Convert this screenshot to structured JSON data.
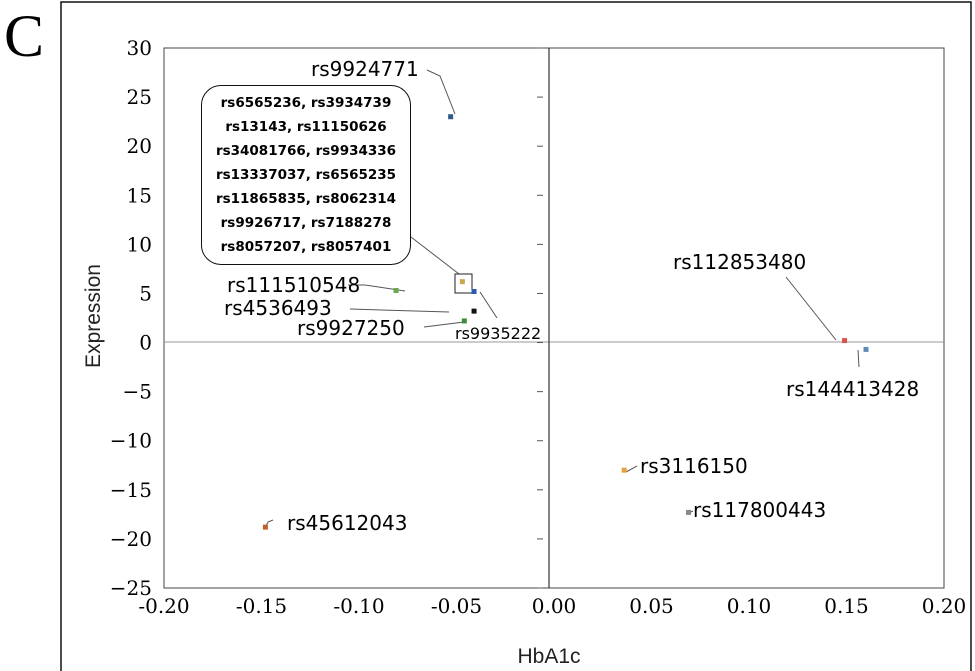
{
  "panel_label": "C",
  "callout": {
    "lines": [
      "rs6565236, rs3934739",
      "rs13143, rs11150626",
      "rs34081766, rs9934336",
      "rs13337037, rs6565235",
      "rs11865835, rs8062314",
      "rs9926717, rs7188278",
      "rs8057207, rs8057401"
    ]
  },
  "chart_data": {
    "type": "scatter",
    "title": "",
    "xlabel": "HbA1c",
    "ylabel": "Expression",
    "xlim": [
      -0.2,
      0.2
    ],
    "ylim": [
      -25,
      30
    ],
    "x_ticks": [
      "-0.20",
      "-0.15",
      "-0.10",
      "-0.05",
      "0.00",
      "0.05",
      "0.10",
      "0.15",
      "0.20"
    ],
    "y_ticks": [
      "30",
      "25",
      "20",
      "15",
      "10",
      "5",
      "0",
      "−5",
      "−10",
      "−15",
      "−20",
      "−25"
    ],
    "grid": false,
    "reference_lines": [
      "x=0",
      "y=0"
    ],
    "points": [
      {
        "label": "rs9924771",
        "x": -0.053,
        "y": 23.0,
        "color": "#2e5a8c"
      },
      {
        "label": "rs111510548",
        "x": -0.081,
        "y": 5.3,
        "color": "#6aa84f"
      },
      {
        "label": "rs4536493",
        "x": -0.041,
        "y": 3.2,
        "color": "#111111"
      },
      {
        "label": "rs9927250",
        "x": -0.046,
        "y": 2.2,
        "color": "#3c8c3c"
      },
      {
        "label": "rs9935222",
        "x": -0.041,
        "y": 5.2,
        "color": "#2e5ab4"
      },
      {
        "label": "rs112853480",
        "x": 0.149,
        "y": 0.2,
        "color": "#d9534f"
      },
      {
        "label": "rs144413428",
        "x": 0.16,
        "y": -0.7,
        "color": "#5b8db8"
      },
      {
        "label": "rs3116150",
        "x": 0.036,
        "y": -13.0,
        "color": "#e6a23c"
      },
      {
        "label": "rs117800443",
        "x": 0.069,
        "y": -17.3,
        "color": "#888888"
      },
      {
        "label": "rs45612043",
        "x": -0.148,
        "y": -18.8,
        "color": "#c0622c"
      },
      {
        "label": "cluster",
        "x": -0.047,
        "y": 6.2,
        "color": "#c9a84c"
      }
    ]
  }
}
